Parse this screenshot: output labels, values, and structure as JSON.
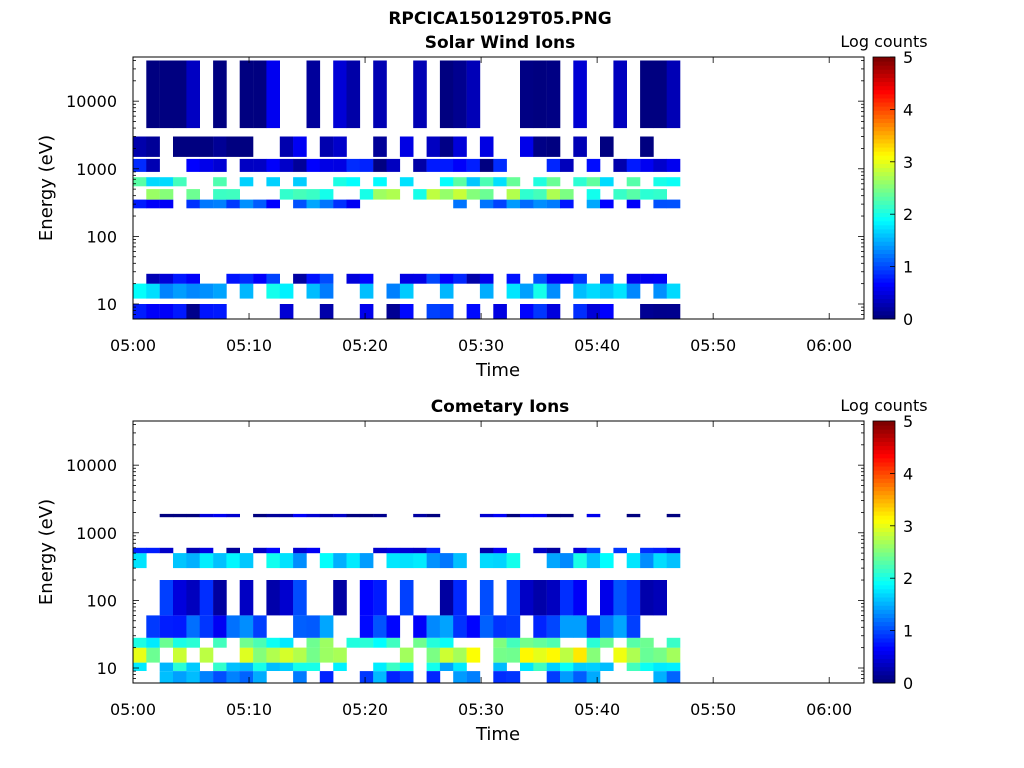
{
  "figure": {
    "title": "RPCICA150129T05.PNG"
  },
  "chart_data": [
    {
      "type": "heatmap",
      "title": "Solar Wind Ions",
      "xlabel": "Time",
      "ylabel": "Energy (eV)",
      "xlim": [
        "05:00",
        "06:03"
      ],
      "x_ticks": [
        "05:00",
        "05:10",
        "05:20",
        "05:30",
        "05:40",
        "05:50",
        "06:00"
      ],
      "yscale": "log",
      "ylim": [
        6,
        45000
      ],
      "y_ticks": [
        {
          "value": 10,
          "label": "10"
        },
        {
          "value": 100,
          "label": "100"
        },
        {
          "value": 1000,
          "label": "1000"
        },
        {
          "value": 10000,
          "label": "10000"
        }
      ],
      "colorbar": {
        "label": "Log counts",
        "min": 0,
        "max": 5,
        "ticks": [
          "0",
          "1",
          "2",
          "3",
          "4",
          "5"
        ]
      },
      "data_time_range": [
        "05:00",
        "05:46"
      ],
      "bands": [
        {
          "e_low": 6,
          "e_high": 10,
          "level": 0.5
        },
        {
          "e_low": 12,
          "e_high": 20,
          "level": 1.6
        },
        {
          "e_low": 20,
          "e_high": 28,
          "level": 0.6
        },
        {
          "e_low": 260,
          "e_high": 350,
          "level": 1.0
        },
        {
          "e_low": 350,
          "e_high": 500,
          "level": 2.4
        },
        {
          "e_low": 550,
          "e_high": 750,
          "level": 2.0
        },
        {
          "e_low": 900,
          "e_high": 1400,
          "level": 0.4
        },
        {
          "e_low": 1500,
          "e_high": 3000,
          "level": 0.2
        },
        {
          "e_low": 4000,
          "e_high": 40000,
          "level": 0.1
        }
      ]
    },
    {
      "type": "heatmap",
      "title": "Cometary Ions",
      "xlabel": "Time",
      "ylabel": "Energy (eV)",
      "xlim": [
        "05:00",
        "06:03"
      ],
      "x_ticks": [
        "05:00",
        "05:10",
        "05:20",
        "05:30",
        "05:40",
        "05:50",
        "06:00"
      ],
      "yscale": "log",
      "ylim": [
        6,
        45000
      ],
      "y_ticks": [
        {
          "value": 10,
          "label": "10"
        },
        {
          "value": 100,
          "label": "100"
        },
        {
          "value": 1000,
          "label": "1000"
        },
        {
          "value": 10000,
          "label": "10000"
        }
      ],
      "colorbar": {
        "label": "Log counts",
        "min": 0,
        "max": 5,
        "ticks": [
          "0",
          "1",
          "2",
          "3",
          "4",
          "5"
        ]
      },
      "data_time_range": [
        "05:00",
        "05:46"
      ],
      "bands": [
        {
          "e_low": 6,
          "e_high": 9,
          "level": 1.2
        },
        {
          "e_low": 9,
          "e_high": 12,
          "level": 1.8
        },
        {
          "e_low": 12,
          "e_high": 20,
          "level": 2.8
        },
        {
          "e_low": 20,
          "e_high": 28,
          "level": 2.2
        },
        {
          "e_low": 28,
          "e_high": 60,
          "level": 1.0
        },
        {
          "e_low": 60,
          "e_high": 200,
          "level": 0.6
        },
        {
          "e_low": 300,
          "e_high": 500,
          "level": 1.6
        },
        {
          "e_low": 500,
          "e_high": 600,
          "level": 0.5
        },
        {
          "e_low": 1700,
          "e_high": 1900,
          "level": 0.2
        }
      ]
    }
  ]
}
